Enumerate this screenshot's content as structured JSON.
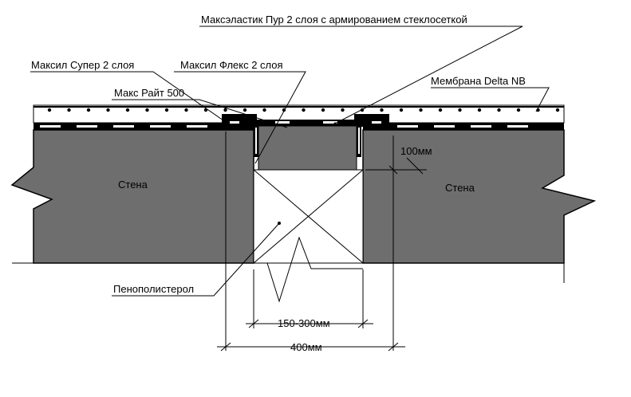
{
  "labels": {
    "maxelastic": "Максэластик Пур 2 слоя с армированием стеклосеткой",
    "maxil_super": "Максил Супер 2 слоя",
    "maxil_flex": "Максил Флекс 2 слоя",
    "max_rait": "Макс Райт 500",
    "membrane": "Мембрана Delta NB",
    "wall_left": "Стена",
    "wall_right": "Стена",
    "polystyrene": "Пенополистерол"
  },
  "dimensions": {
    "depth": "100мм",
    "gap": "150-300мм",
    "total": "400мм"
  },
  "colors": {
    "wall_fill": "#6e6e6e",
    "membrane_black": "#000000",
    "background": "#ffffff"
  }
}
